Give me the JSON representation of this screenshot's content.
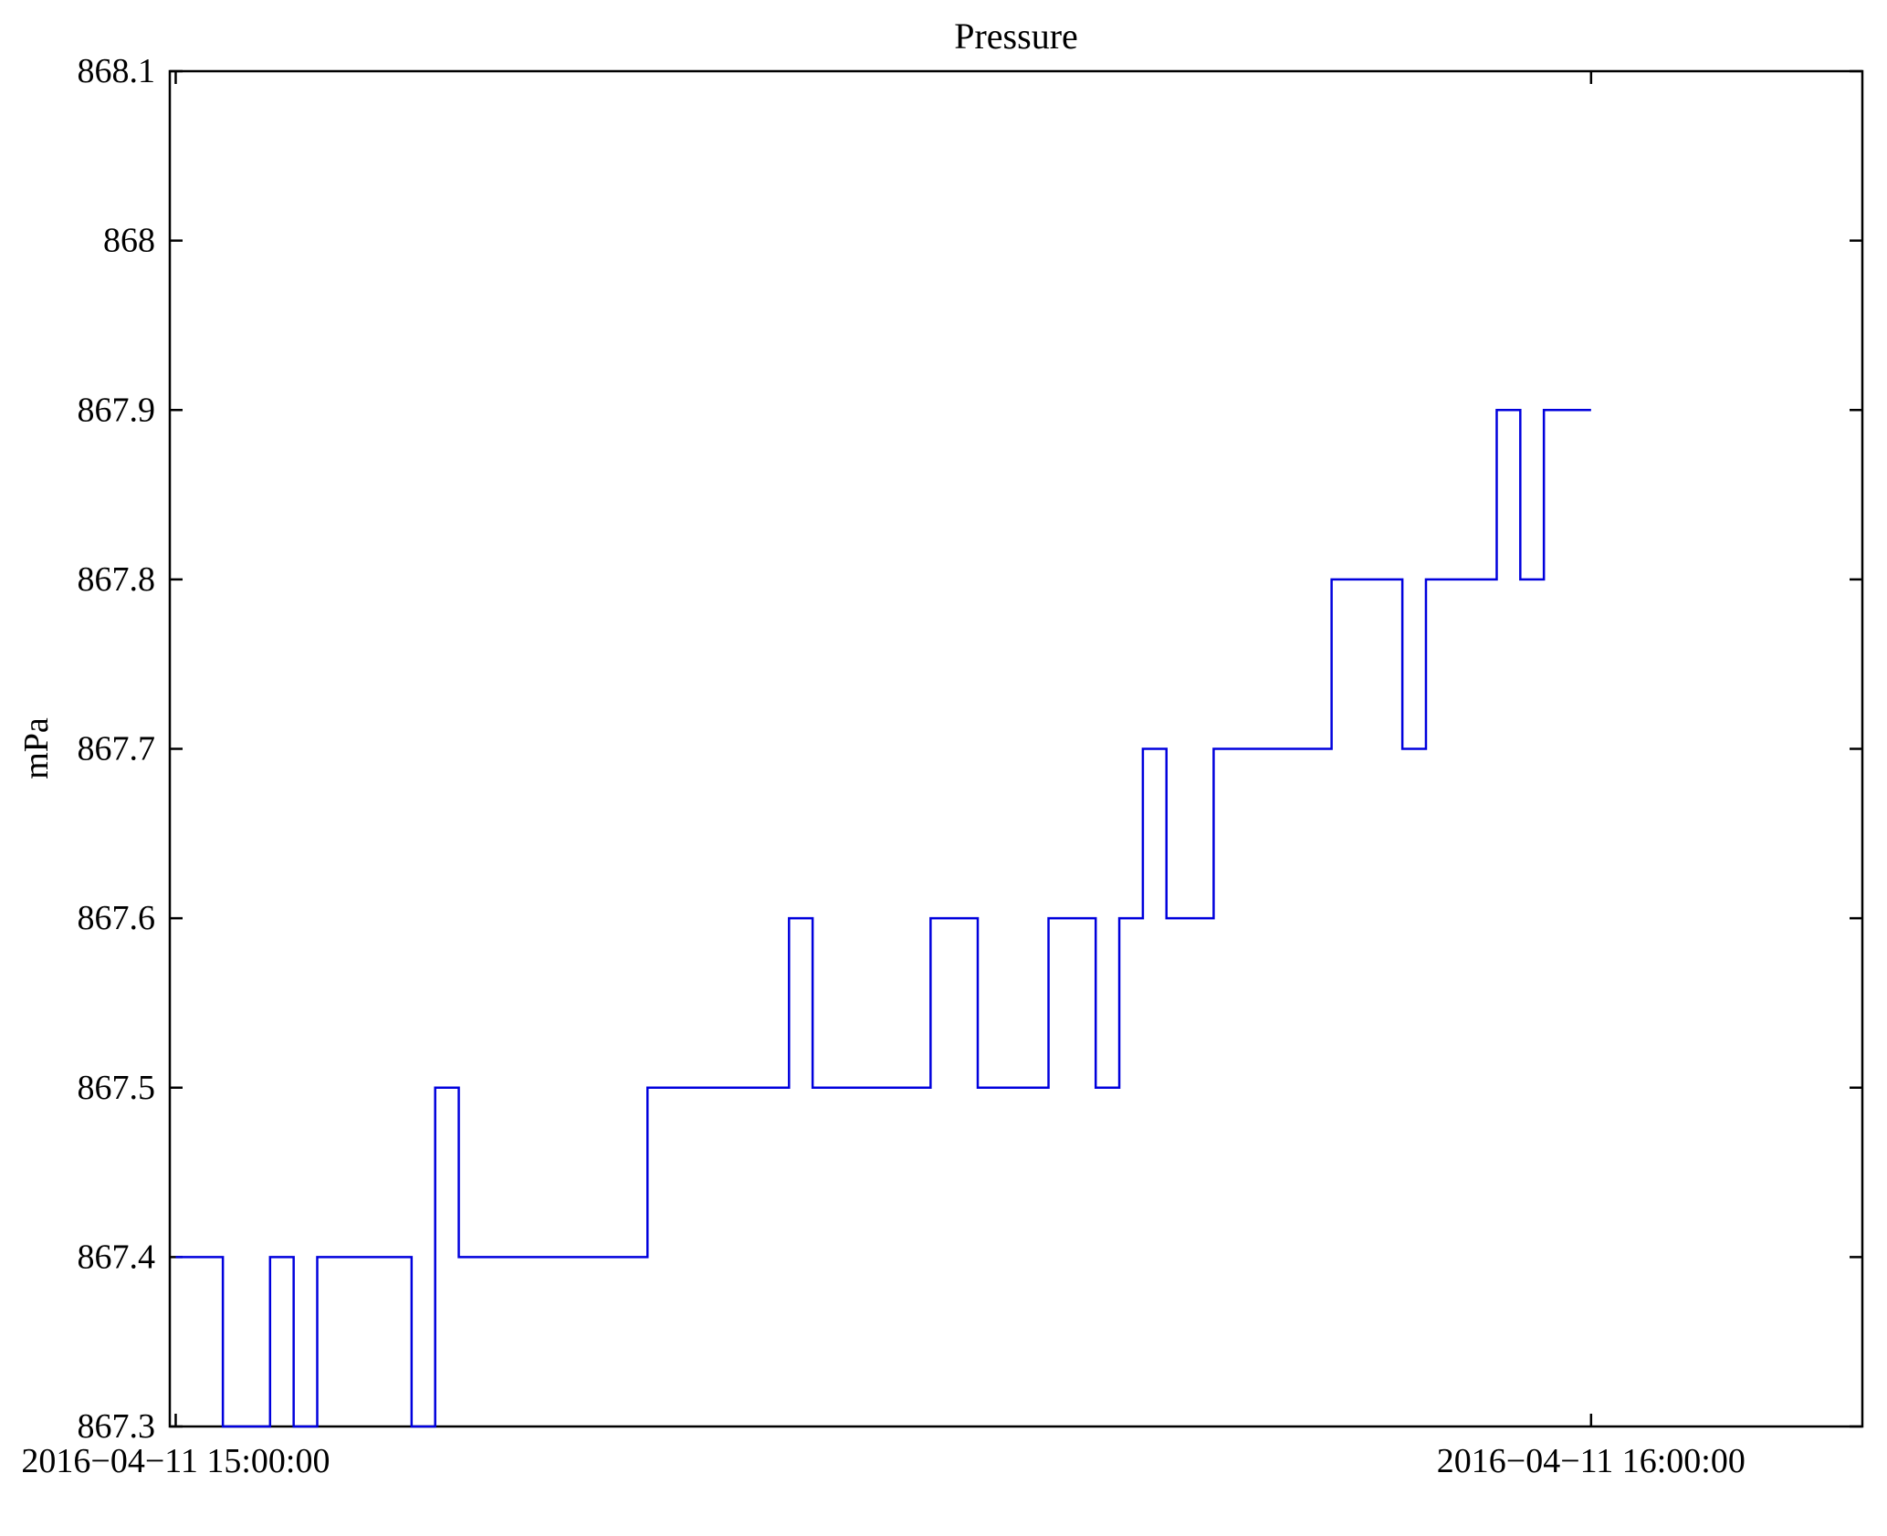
{
  "figure": {
    "title": "Pressure",
    "ylabel": "mPa"
  },
  "chart_data": {
    "type": "line",
    "subtype": "step",
    "title": "Pressure",
    "xlabel": "",
    "ylabel": "mPa",
    "line_color": "#0000dd",
    "background": "#ffffff",
    "grid": false,
    "legend": null,
    "x_unit": "minutes after 2016-04-11 15:00:00",
    "xlim": [
      -0.25,
      71.5
    ],
    "ylim": [
      867.3,
      868.1
    ],
    "x_ticks": [
      {
        "t": 0,
        "label": "2016−04−11 15:00:00"
      },
      {
        "t": 60,
        "label": "2016−04−11 16:00:00"
      }
    ],
    "y_ticks": [
      {
        "v": 867.3,
        "label": "867.3"
      },
      {
        "v": 867.4,
        "label": "867.4"
      },
      {
        "v": 867.5,
        "label": "867.5"
      },
      {
        "v": 867.6,
        "label": "867.6"
      },
      {
        "v": 867.7,
        "label": "867.7"
      },
      {
        "v": 867.8,
        "label": "867.8"
      },
      {
        "v": 867.9,
        "label": "867.9"
      },
      {
        "v": 868.0,
        "label": "868"
      },
      {
        "v": 868.1,
        "label": "868.1"
      }
    ],
    "steps": [
      [
        0,
        867.4
      ],
      [
        2,
        867.3
      ],
      [
        4,
        867.4
      ],
      [
        5,
        867.3
      ],
      [
        6,
        867.4
      ],
      [
        10,
        867.3
      ],
      [
        11,
        867.5
      ],
      [
        12,
        867.4
      ],
      [
        20,
        867.5
      ],
      [
        26,
        867.6
      ],
      [
        27,
        867.5
      ],
      [
        32,
        867.6
      ],
      [
        34,
        867.5
      ],
      [
        37,
        867.6
      ],
      [
        39,
        867.5
      ],
      [
        40,
        867.6
      ],
      [
        41,
        867.7
      ],
      [
        42,
        867.6
      ],
      [
        44,
        867.7
      ],
      [
        49,
        867.8
      ],
      [
        52,
        867.7
      ],
      [
        53,
        867.8
      ],
      [
        56,
        867.9
      ],
      [
        57,
        867.8
      ],
      [
        58,
        867.9
      ]
    ],
    "end_t": 60
  }
}
